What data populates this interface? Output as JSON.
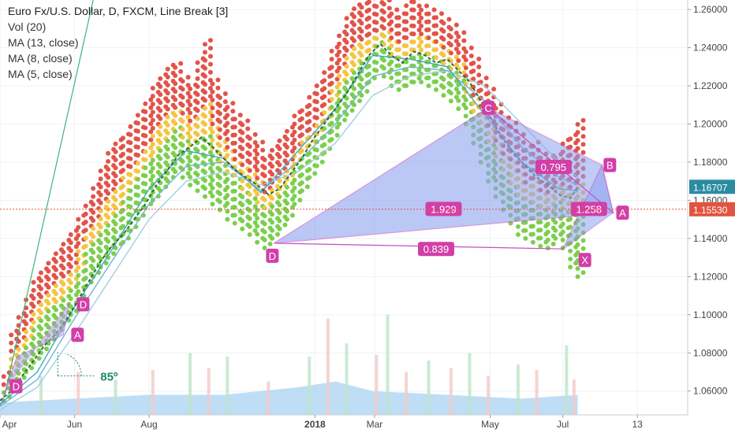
{
  "header": {
    "title": "Euro Fx/U.S. Dollar, D, FXCM, Line Break [3]",
    "indicators": [
      "Vol (20)",
      "MA (13, close)",
      "MA (8, close)",
      "MA (5, close)"
    ]
  },
  "chart_data": {
    "type": "line",
    "chart_style": "Line Break [3] with Point & Figure-style dot columns",
    "ylim": [
      1.0475,
      1.265
    ],
    "y_ticks": [
      "1.26000",
      "1.24000",
      "1.22000",
      "1.20000",
      "1.18000",
      "1.16000",
      "1.14000",
      "1.12000",
      "1.10000",
      "1.08000",
      "1.06000"
    ],
    "y_tick_values": [
      1.26,
      1.24,
      1.22,
      1.2,
      1.18,
      1.16,
      1.14,
      1.12,
      1.1,
      1.08,
      1.06
    ],
    "x_ticks": [
      "Apr",
      "Jun",
      "Aug",
      "2018",
      "Mar",
      "May",
      "Jul",
      "13"
    ],
    "x_tick_positions": [
      0.0,
      2.0,
      4.0,
      8.45,
      10.05,
      13.15,
      15.1,
      17.1
    ],
    "x_range": [
      0.0,
      18.45
    ],
    "price_labels": [
      {
        "text": "1.16707",
        "value": 1.16707,
        "color": "#2a8ca0"
      },
      {
        "text": "1.15530",
        "value": 1.1553,
        "color": "#e2543f"
      }
    ],
    "close_line": [
      [
        0,
        1.055
      ],
      [
        0.3,
        1.06
      ],
      [
        0.6,
        1.068
      ],
      [
        0.9,
        1.076
      ],
      [
        1.2,
        1.084
      ],
      [
        1.5,
        1.09
      ],
      [
        1.8,
        1.098
      ],
      [
        2.1,
        1.108
      ],
      [
        2.4,
        1.118
      ],
      [
        2.7,
        1.128
      ],
      [
        3.0,
        1.136
      ],
      [
        3.3,
        1.142
      ],
      [
        3.6,
        1.15
      ],
      [
        3.9,
        1.158
      ],
      [
        4.2,
        1.168
      ],
      [
        4.5,
        1.176
      ],
      [
        4.8,
        1.184
      ],
      [
        5.1,
        1.188
      ],
      [
        5.4,
        1.193
      ],
      [
        5.7,
        1.188
      ],
      [
        6.0,
        1.182
      ],
      [
        6.3,
        1.176
      ],
      [
        6.6,
        1.172
      ],
      [
        6.9,
        1.168
      ],
      [
        7.2,
        1.163
      ],
      [
        7.5,
        1.166
      ],
      [
        7.8,
        1.174
      ],
      [
        8.1,
        1.182
      ],
      [
        8.4,
        1.192
      ],
      [
        8.7,
        1.2
      ],
      [
        9.0,
        1.208
      ],
      [
        9.3,
        1.216
      ],
      [
        9.6,
        1.226
      ],
      [
        9.9,
        1.236
      ],
      [
        10.2,
        1.242
      ],
      [
        10.5,
        1.236
      ],
      [
        10.8,
        1.232
      ],
      [
        11.1,
        1.238
      ],
      [
        11.4,
        1.236
      ],
      [
        11.7,
        1.232
      ],
      [
        12.0,
        1.234
      ],
      [
        12.3,
        1.228
      ],
      [
        12.6,
        1.222
      ],
      [
        12.9,
        1.212
      ],
      [
        13.2,
        1.202
      ],
      [
        13.5,
        1.192
      ],
      [
        13.8,
        1.184
      ],
      [
        14.1,
        1.178
      ],
      [
        14.4,
        1.172
      ],
      [
        14.7,
        1.168
      ],
      [
        15.0,
        1.163
      ],
      [
        15.3,
        1.161
      ],
      [
        15.5,
        1.167
      ]
    ],
    "series": [
      {
        "name": "MA (13, close)",
        "color": "#9fcfe3",
        "values": [
          [
            0,
            1.05
          ],
          [
            1,
            1.062
          ],
          [
            2,
            1.09
          ],
          [
            3,
            1.12
          ],
          [
            4,
            1.15
          ],
          [
            5,
            1.17
          ],
          [
            6,
            1.175
          ],
          [
            7,
            1.168
          ],
          [
            8,
            1.175
          ],
          [
            9,
            1.19
          ],
          [
            10,
            1.215
          ],
          [
            11,
            1.225
          ],
          [
            12,
            1.228
          ],
          [
            13,
            1.22
          ],
          [
            14,
            1.2
          ],
          [
            15,
            1.18
          ],
          [
            15.5,
            1.172
          ]
        ]
      },
      {
        "name": "MA (8, close)",
        "color": "#6fb6d6",
        "values": [
          [
            0,
            1.052
          ],
          [
            1,
            1.066
          ],
          [
            2,
            1.098
          ],
          [
            3,
            1.128
          ],
          [
            4,
            1.158
          ],
          [
            5,
            1.178
          ],
          [
            6,
            1.18
          ],
          [
            7,
            1.165
          ],
          [
            8,
            1.18
          ],
          [
            9,
            1.2
          ],
          [
            10,
            1.225
          ],
          [
            11,
            1.23
          ],
          [
            12,
            1.228
          ],
          [
            13,
            1.212
          ],
          [
            14,
            1.188
          ],
          [
            15,
            1.172
          ],
          [
            15.5,
            1.168
          ]
        ]
      },
      {
        "name": "MA (5, close)",
        "color": "#3fa7c6",
        "values": [
          [
            0,
            1.053
          ],
          [
            1,
            1.07
          ],
          [
            2,
            1.104
          ],
          [
            3,
            1.134
          ],
          [
            4,
            1.166
          ],
          [
            5,
            1.186
          ],
          [
            6,
            1.182
          ],
          [
            7,
            1.164
          ],
          [
            8,
            1.186
          ],
          [
            9,
            1.208
          ],
          [
            10,
            1.236
          ],
          [
            11,
            1.234
          ],
          [
            12,
            1.23
          ],
          [
            13,
            1.205
          ],
          [
            14,
            1.18
          ],
          [
            15,
            1.166
          ],
          [
            15.5,
            1.165
          ]
        ]
      }
    ],
    "dot_columns": [
      [
        0.1,
        1.055,
        1.068
      ],
      [
        0.3,
        1.06,
        1.09
      ],
      [
        0.5,
        1.065,
        1.1
      ],
      [
        0.7,
        1.07,
        1.11
      ],
      [
        0.9,
        1.075,
        1.12
      ],
      [
        1.1,
        1.08,
        1.125
      ],
      [
        1.3,
        1.085,
        1.13
      ],
      [
        1.5,
        1.09,
        1.134
      ],
      [
        1.7,
        1.095,
        1.138
      ],
      [
        1.9,
        1.1,
        1.142
      ],
      [
        2.1,
        1.108,
        1.152
      ],
      [
        2.3,
        1.115,
        1.16
      ],
      [
        2.5,
        1.12,
        1.17
      ],
      [
        2.7,
        1.125,
        1.178
      ],
      [
        2.9,
        1.13,
        1.185
      ],
      [
        3.1,
        1.135,
        1.19
      ],
      [
        3.3,
        1.138,
        1.196
      ],
      [
        3.5,
        1.144,
        1.2
      ],
      [
        3.7,
        1.15,
        1.206
      ],
      [
        3.9,
        1.156,
        1.212
      ],
      [
        4.1,
        1.16,
        1.22
      ],
      [
        4.3,
        1.165,
        1.225
      ],
      [
        4.5,
        1.17,
        1.23
      ],
      [
        4.7,
        1.175,
        1.232
      ],
      [
        4.9,
        1.172,
        1.226
      ],
      [
        5.1,
        1.168,
        1.22
      ],
      [
        5.3,
        1.165,
        1.235
      ],
      [
        5.5,
        1.162,
        1.245
      ],
      [
        5.7,
        1.158,
        1.225
      ],
      [
        5.9,
        1.155,
        1.215
      ],
      [
        6.1,
        1.15,
        1.21
      ],
      [
        6.3,
        1.148,
        1.205
      ],
      [
        6.5,
        1.145,
        1.2
      ],
      [
        6.7,
        1.142,
        1.195
      ],
      [
        6.9,
        1.138,
        1.19
      ],
      [
        7.1,
        1.135,
        1.185
      ],
      [
        7.3,
        1.14,
        1.19
      ],
      [
        7.5,
        1.145,
        1.195
      ],
      [
        7.7,
        1.15,
        1.2
      ],
      [
        7.9,
        1.158,
        1.205
      ],
      [
        8.1,
        1.165,
        1.21
      ],
      [
        8.3,
        1.172,
        1.215
      ],
      [
        8.5,
        1.178,
        1.22
      ],
      [
        8.7,
        1.185,
        1.228
      ],
      [
        8.9,
        1.192,
        1.24
      ],
      [
        9.1,
        1.2,
        1.25
      ],
      [
        9.3,
        1.205,
        1.256
      ],
      [
        9.5,
        1.21,
        1.262
      ],
      [
        9.7,
        1.215,
        1.264
      ],
      [
        9.9,
        1.222,
        1.264
      ],
      [
        10.1,
        1.228,
        1.264
      ],
      [
        10.3,
        1.225,
        1.264
      ],
      [
        10.5,
        1.22,
        1.26
      ],
      [
        10.7,
        1.218,
        1.258
      ],
      [
        10.9,
        1.22,
        1.262
      ],
      [
        11.1,
        1.222,
        1.264
      ],
      [
        11.3,
        1.222,
        1.262
      ],
      [
        11.5,
        1.22,
        1.26
      ],
      [
        11.7,
        1.218,
        1.258
      ],
      [
        11.9,
        1.215,
        1.255
      ],
      [
        12.1,
        1.212,
        1.25
      ],
      [
        12.3,
        1.208,
        1.246
      ],
      [
        12.5,
        1.2,
        1.24
      ],
      [
        12.7,
        1.19,
        1.232
      ],
      [
        12.9,
        1.18,
        1.225
      ],
      [
        13.1,
        1.17,
        1.22
      ],
      [
        13.3,
        1.162,
        1.212
      ],
      [
        13.5,
        1.155,
        1.205
      ],
      [
        13.7,
        1.148,
        1.2
      ],
      [
        13.9,
        1.142,
        1.195
      ],
      [
        14.1,
        1.14,
        1.19
      ],
      [
        14.3,
        1.138,
        1.19
      ],
      [
        14.5,
        1.136,
        1.186
      ],
      [
        14.7,
        1.135,
        1.182
      ],
      [
        14.9,
        1.14,
        1.185
      ],
      [
        15.1,
        1.135,
        1.19
      ],
      [
        15.3,
        1.125,
        1.195
      ],
      [
        15.5,
        1.12,
        1.2
      ]
    ],
    "volume_bars": [
      [
        1.1,
        1.068
      ],
      [
        2.1,
        1.07
      ],
      [
        3.1,
        1.066
      ],
      [
        4.1,
        1.071
      ],
      [
        5.1,
        1.08
      ],
      [
        5.6,
        1.072
      ],
      [
        6.1,
        1.078
      ],
      [
        7.2,
        1.065
      ],
      [
        8.3,
        1.078
      ],
      [
        8.8,
        1.098
      ],
      [
        9.3,
        1.085
      ],
      [
        10.1,
        1.079
      ],
      [
        10.4,
        1.1
      ],
      [
        10.9,
        1.07
      ],
      [
        11.5,
        1.076
      ],
      [
        12.1,
        1.072
      ],
      [
        12.6,
        1.08
      ],
      [
        13.1,
        1.068
      ],
      [
        13.9,
        1.074
      ],
      [
        14.4,
        1.071
      ],
      [
        15.2,
        1.084
      ],
      [
        15.4,
        1.066
      ]
    ],
    "volume_ma": [
      [
        0,
        1.054
      ],
      [
        2,
        1.056
      ],
      [
        4,
        1.058
      ],
      [
        6,
        1.058
      ],
      [
        8,
        1.062
      ],
      [
        9,
        1.065
      ],
      [
        10,
        1.06
      ],
      [
        12,
        1.058
      ],
      [
        14,
        1.056
      ],
      [
        15.5,
        1.058
      ]
    ],
    "pattern_xabcd_main": {
      "X": [
        15.1,
        1.1345
      ],
      "A": [
        16.45,
        1.1535
      ],
      "B": [
        16.15,
        1.1785
      ],
      "C": [
        13.1,
        1.2085
      ],
      "D": [
        7.35,
        1.1375
      ]
    },
    "pattern_points": [
      {
        "label": "D",
        "x": 7.35,
        "y": 1.1375
      },
      {
        "label": "C",
        "x": 13.1,
        "y": 1.2085
      },
      {
        "label": "B",
        "x": 16.15,
        "y": 1.1785
      },
      {
        "label": "A",
        "x": 16.45,
        "y": 1.1535
      },
      {
        "label": "X",
        "x": 15.1,
        "y": 1.1345
      }
    ],
    "ratio_labels": [
      {
        "text": "1.929",
        "x": 11.9,
        "y": 1.1555
      },
      {
        "text": "1.258",
        "x": 15.8,
        "y": 1.1555
      },
      {
        "text": "0.839",
        "x": 11.7,
        "y": 1.1345
      },
      {
        "text": "0.795",
        "x": 14.85,
        "y": 1.1775
      }
    ],
    "pattern_small": {
      "labels": [
        {
          "text": "D",
          "x": 0.05,
          "y": 1.0625
        },
        {
          "text": "A",
          "x": 1.7,
          "y": 1.0895
        },
        {
          "text": "D",
          "x": 1.85,
          "y": 1.1055
        }
      ]
    },
    "angle_label": "85º",
    "angle_vertex": [
      1.55,
      1.068
    ]
  }
}
